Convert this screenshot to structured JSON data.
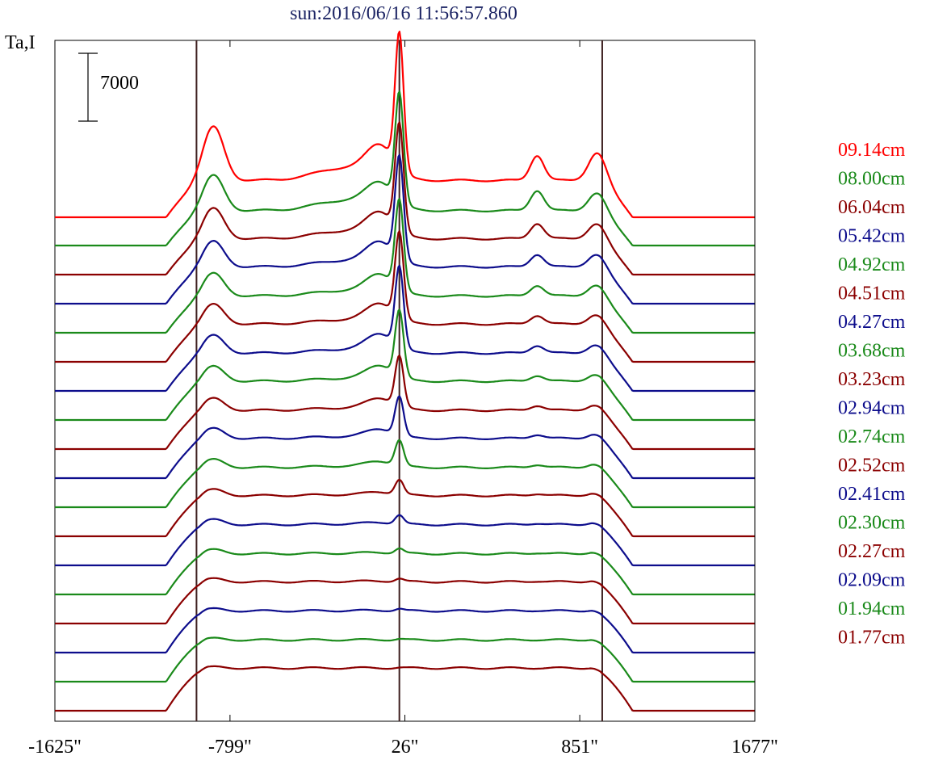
{
  "chart_data": {
    "type": "line",
    "title": "sun:2016/06/16 11:56:57.860",
    "ylabel": "Ta,I",
    "scale_bar_label": "7000",
    "xlim": [
      -1625,
      1677
    ],
    "x_ticks": [
      {
        "value": -1625,
        "label": "-1625\""
      },
      {
        "value": -799,
        "label": "-799\""
      },
      {
        "value": 26,
        "label": "26\""
      },
      {
        "value": 851,
        "label": "851\""
      },
      {
        "value": 1677,
        "label": "1677\""
      }
    ],
    "reference_lines_x": [
      -957,
      0,
      957
    ],
    "series_note": "Curves are vertically stacked; offsets shown relative to each curve's own baseline. Scale bar = 7000.",
    "series": [
      {
        "name": "09.14cm",
        "color": "#ff0000",
        "baseline": 263,
        "peak_center": 14000,
        "limb": 5500,
        "disk_level": 3800,
        "bright_right": 2600
      },
      {
        "name": "08.00cm",
        "color": "#1a8a1a",
        "baseline": 298,
        "peak_center": 11200,
        "limb": 3600,
        "disk_level": 3600,
        "bright_right": 2100
      },
      {
        "name": "06.04cm",
        "color": "#8b0000",
        "baseline": 334,
        "peak_center": 11000,
        "limb": 3100,
        "disk_level": 3700,
        "bright_right": 1600
      },
      {
        "name": "05.42cm",
        "color": "#0d0d8c",
        "baseline": 370,
        "peak_center": 10600,
        "limb": 2600,
        "disk_level": 3800,
        "bright_right": 1300
      },
      {
        "name": "04.92cm",
        "color": "#1a8a1a",
        "baseline": 406,
        "peak_center": 9200,
        "limb": 2300,
        "disk_level": 3800,
        "bright_right": 1100
      },
      {
        "name": "04.51cm",
        "color": "#8b0000",
        "baseline": 442,
        "peak_center": 8800,
        "limb": 2000,
        "disk_level": 3900,
        "bright_right": 900
      },
      {
        "name": "04.27cm",
        "color": "#0d0d8c",
        "baseline": 478,
        "peak_center": 8300,
        "limb": 1800,
        "disk_level": 3900,
        "bright_right": 800
      },
      {
        "name": "03.68cm",
        "color": "#1a8a1a",
        "baseline": 514,
        "peak_center": 6800,
        "limb": 1500,
        "disk_level": 4000,
        "bright_right": 600
      },
      {
        "name": "03.23cm",
        "color": "#8b0000",
        "baseline": 550,
        "peak_center": 5200,
        "limb": 1200,
        "disk_level": 4000,
        "bright_right": 500
      },
      {
        "name": "02.94cm",
        "color": "#0d0d8c",
        "baseline": 586,
        "peak_center": 4000,
        "limb": 1000,
        "disk_level": 4100,
        "bright_right": 400
      },
      {
        "name": "02.74cm",
        "color": "#1a8a1a",
        "baseline": 622,
        "peak_center": 2600,
        "limb": 800,
        "disk_level": 4100,
        "bright_right": 300
      },
      {
        "name": "02.52cm",
        "color": "#8b0000",
        "baseline": 658,
        "peak_center": 1500,
        "limb": 600,
        "disk_level": 4200,
        "bright_right": 200
      },
      {
        "name": "02.41cm",
        "color": "#0d0d8c",
        "baseline": 694,
        "peak_center": 900,
        "limb": 500,
        "disk_level": 4200,
        "bright_right": 150
      },
      {
        "name": "02.30cm",
        "color": "#1a8a1a",
        "baseline": 730,
        "peak_center": 500,
        "limb": 400,
        "disk_level": 4200,
        "bright_right": 100
      },
      {
        "name": "02.27cm",
        "color": "#8b0000",
        "baseline": 766,
        "peak_center": 300,
        "limb": 300,
        "disk_level": 4300,
        "bright_right": 80
      },
      {
        "name": "02.09cm",
        "color": "#0d0d8c",
        "baseline": 802,
        "peak_center": 200,
        "limb": 200,
        "disk_level": 4300,
        "bright_right": 50
      },
      {
        "name": "01.94cm",
        "color": "#1a8a1a",
        "baseline": 838,
        "peak_center": 100,
        "limb": 150,
        "disk_level": 4300,
        "bright_right": 30
      },
      {
        "name": "01.77cm",
        "color": "#8b0000",
        "baseline": 874,
        "peak_center": 50,
        "limb": 100,
        "disk_level": 4400,
        "bright_right": 20
      }
    ]
  }
}
